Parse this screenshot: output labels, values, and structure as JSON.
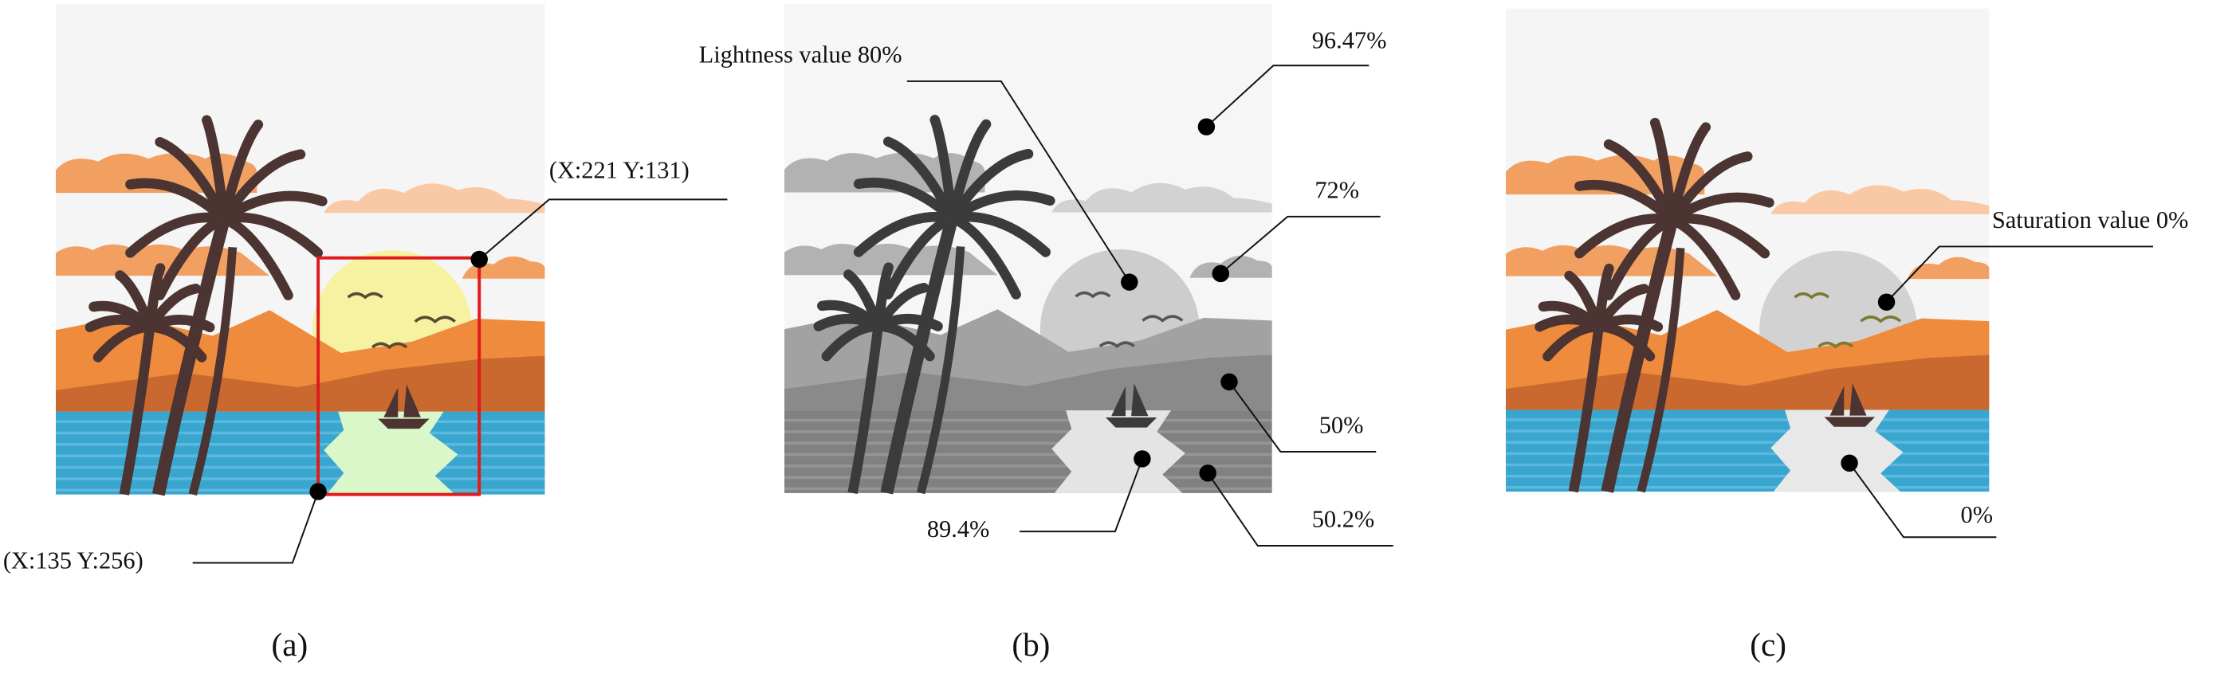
{
  "panels": [
    {
      "label": "(a)",
      "annotations": [
        "(X:221  Y:131)",
        "(X:135 Y:256)"
      ]
    },
    {
      "label": "(b)",
      "annotations": [
        "Lightness value 80%",
        "96.47%",
        "72%",
        "50%",
        "50.2%",
        "89.4%"
      ]
    },
    {
      "label": "(c)",
      "annotations": [
        "Saturation value 0%",
        "0%"
      ]
    }
  ]
}
